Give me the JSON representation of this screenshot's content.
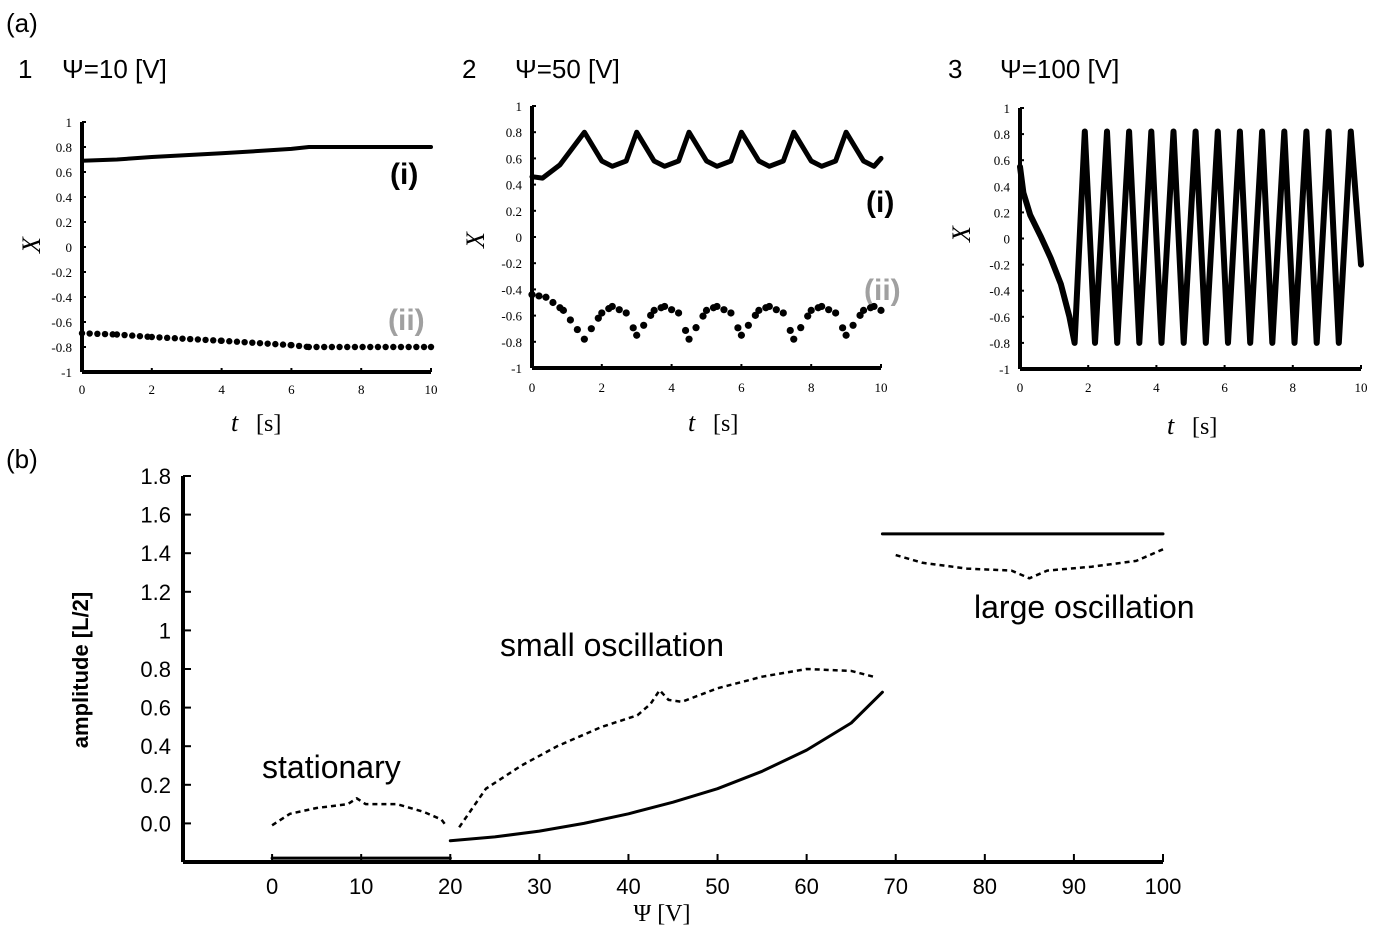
{
  "panels": {
    "a": "(a)",
    "b": "(b)"
  },
  "colors": {
    "series_i": "#000000",
    "series_ii": "#000000",
    "label_ii": "#a0a0a0",
    "axis": "#000000"
  },
  "chart_data": [
    {
      "type": "line",
      "subplot_number": "1",
      "title": "Ψ=10 [V]",
      "xlabel": "t",
      "xunit": "[s]",
      "ylabel": "X",
      "xlim": [
        0,
        10
      ],
      "ylim": [
        -1,
        1
      ],
      "xticks": [
        0,
        2,
        4,
        6,
        8,
        10
      ],
      "yticks": [
        1,
        0.8,
        0.6,
        0.4,
        0.2,
        0,
        -0.2,
        -0.4,
        -0.6,
        -0.8,
        -1
      ],
      "ytick_labels": [
        "1",
        "0.8",
        "0.6",
        "0.4",
        "0.2",
        "0",
        "-0.2",
        "-0.4",
        "-0.6",
        "-0.8",
        "-1"
      ],
      "series": [
        {
          "name": "(i)",
          "style": "solid",
          "points": [
            [
              0,
              0.69
            ],
            [
              1,
              0.7
            ],
            [
              2,
              0.72
            ],
            [
              4,
              0.75
            ],
            [
              6,
              0.785
            ],
            [
              6.5,
              0.8
            ],
            [
              10,
              0.8
            ]
          ]
        },
        {
          "name": "(ii)",
          "style": "dotted",
          "points": [
            [
              0,
              -0.69
            ],
            [
              1,
              -0.7
            ],
            [
              2,
              -0.72
            ],
            [
              4,
              -0.75
            ],
            [
              6,
              -0.785
            ],
            [
              6.5,
              -0.8
            ],
            [
              10,
              -0.8
            ]
          ]
        }
      ]
    },
    {
      "type": "line",
      "subplot_number": "2",
      "title": "Ψ=50 [V]",
      "xlabel": "t",
      "xunit": "[s]",
      "ylabel": "X",
      "xlim": [
        0,
        10
      ],
      "ylim": [
        -1,
        1
      ],
      "xticks": [
        0,
        2,
        4,
        6,
        8,
        10
      ],
      "yticks": [
        1,
        0.8,
        0.6,
        0.4,
        0.2,
        0,
        -0.2,
        -0.4,
        -0.6,
        -0.8,
        -1
      ],
      "ytick_labels": [
        "1",
        "0.8",
        "0.6",
        "0.4",
        "0.2",
        "0",
        "-0.2",
        "-0.4",
        "-0.6",
        "-0.8",
        "-1"
      ],
      "series": [
        {
          "name": "(i)",
          "style": "solid",
          "points": [
            [
              0,
              0.46
            ],
            [
              0.3,
              0.45
            ],
            [
              0.8,
              0.55
            ],
            [
              1.5,
              0.8
            ],
            [
              2.0,
              0.58
            ],
            [
              2.3,
              0.54
            ],
            [
              2.7,
              0.58
            ],
            [
              3.0,
              0.8
            ],
            [
              3.5,
              0.58
            ],
            [
              3.8,
              0.54
            ],
            [
              4.2,
              0.58
            ],
            [
              4.5,
              0.8
            ],
            [
              5.0,
              0.58
            ],
            [
              5.3,
              0.54
            ],
            [
              5.7,
              0.58
            ],
            [
              6.0,
              0.8
            ],
            [
              6.5,
              0.58
            ],
            [
              6.8,
              0.54
            ],
            [
              7.2,
              0.58
            ],
            [
              7.5,
              0.8
            ],
            [
              8.0,
              0.58
            ],
            [
              8.3,
              0.54
            ],
            [
              8.7,
              0.58
            ],
            [
              9.0,
              0.8
            ],
            [
              9.5,
              0.58
            ],
            [
              9.8,
              0.54
            ],
            [
              10,
              0.6
            ]
          ]
        },
        {
          "name": "(ii)",
          "style": "dotted",
          "points": [
            [
              0,
              -0.44
            ],
            [
              0.4,
              -0.46
            ],
            [
              0.9,
              -0.56
            ],
            [
              1.5,
              -0.78
            ],
            [
              2.0,
              -0.58
            ],
            [
              2.3,
              -0.53
            ],
            [
              2.7,
              -0.58
            ],
            [
              3.0,
              -0.75
            ],
            [
              3.5,
              -0.56
            ],
            [
              3.8,
              -0.53
            ],
            [
              4.2,
              -0.58
            ],
            [
              4.5,
              -0.78
            ],
            [
              5.0,
              -0.56
            ],
            [
              5.3,
              -0.53
            ],
            [
              5.7,
              -0.58
            ],
            [
              6.0,
              -0.75
            ],
            [
              6.5,
              -0.56
            ],
            [
              6.8,
              -0.53
            ],
            [
              7.2,
              -0.58
            ],
            [
              7.5,
              -0.78
            ],
            [
              8.0,
              -0.56
            ],
            [
              8.3,
              -0.53
            ],
            [
              8.7,
              -0.58
            ],
            [
              9.0,
              -0.75
            ],
            [
              9.5,
              -0.56
            ],
            [
              9.8,
              -0.53
            ],
            [
              10,
              -0.56
            ]
          ]
        }
      ]
    },
    {
      "type": "line",
      "subplot_number": "3",
      "title": "Ψ=100 [V]",
      "xlabel": "t",
      "xunit": "[s]",
      "ylabel": "X",
      "xlim": [
        0,
        10
      ],
      "ylim": [
        -1,
        1
      ],
      "xticks": [
        0,
        2,
        4,
        6,
        8,
        10
      ],
      "yticks": [
        1,
        0.8,
        0.6,
        0.4,
        0.2,
        0,
        -0.2,
        -0.4,
        -0.6,
        -0.8,
        -1
      ],
      "ytick_labels": [
        "1",
        "0.8",
        "0.6",
        "0.4",
        "0.2",
        "0",
        "-0.2",
        "-0.4",
        "-0.6",
        "-0.8",
        "-1"
      ],
      "series": [
        {
          "name": "",
          "style": "solid",
          "points": [
            [
              0,
              0.55
            ],
            [
              0.1,
              0.35
            ],
            [
              0.3,
              0.18
            ],
            [
              0.6,
              0.02
            ],
            [
              0.9,
              -0.15
            ],
            [
              1.2,
              -0.35
            ],
            [
              1.45,
              -0.6
            ],
            [
              1.6,
              -0.8
            ],
            [
              1.9,
              0.82
            ],
            [
              2.2,
              -0.8
            ],
            [
              2.55,
              0.82
            ],
            [
              2.85,
              -0.8
            ],
            [
              3.2,
              0.82
            ],
            [
              3.5,
              -0.8
            ],
            [
              3.85,
              0.82
            ],
            [
              4.15,
              -0.8
            ],
            [
              4.5,
              0.82
            ],
            [
              4.8,
              -0.8
            ],
            [
              5.15,
              0.82
            ],
            [
              5.45,
              -0.8
            ],
            [
              5.8,
              0.82
            ],
            [
              6.1,
              -0.8
            ],
            [
              6.45,
              0.82
            ],
            [
              6.75,
              -0.8
            ],
            [
              7.1,
              0.82
            ],
            [
              7.4,
              -0.8
            ],
            [
              7.75,
              0.82
            ],
            [
              8.05,
              -0.8
            ],
            [
              8.4,
              0.82
            ],
            [
              8.7,
              -0.8
            ],
            [
              9.05,
              0.82
            ],
            [
              9.35,
              -0.8
            ],
            [
              9.7,
              0.82
            ],
            [
              10,
              -0.2
            ]
          ]
        }
      ]
    },
    {
      "type": "line",
      "subplot_number": "",
      "title": "",
      "xlabel": "Ψ [V]",
      "ylabel": "amplitude  [L/2]",
      "xlim": [
        -10,
        100
      ],
      "ylim": [
        -0.2,
        1.8
      ],
      "xticks": [
        0,
        10,
        20,
        30,
        40,
        50,
        60,
        70,
        80,
        90,
        100
      ],
      "yticks": [
        1.8,
        1.6,
        1.4,
        1.2,
        1,
        0.8,
        0.6,
        0.4,
        0.2,
        0
      ],
      "ytick_labels": [
        "1.8",
        "1.6",
        "1.4",
        "1.2",
        "1",
        "0.8",
        "0.6",
        "0.4",
        "0.2",
        "0.0"
      ],
      "annotations": [
        "stationary",
        "small oscillation",
        "large oscillation"
      ],
      "series": [
        {
          "name": "",
          "style": "solid",
          "points": [
            [
              0,
              -0.18
            ],
            [
              20,
              -0.18
            ]
          ]
        },
        {
          "name": "",
          "style": "solid",
          "points": [
            [
              20,
              -0.09
            ],
            [
              25,
              -0.07
            ],
            [
              30,
              -0.04
            ],
            [
              35,
              0
            ],
            [
              40,
              0.05
            ],
            [
              45,
              0.11
            ],
            [
              50,
              0.18
            ],
            [
              55,
              0.27
            ],
            [
              60,
              0.38
            ],
            [
              65,
              0.52
            ],
            [
              68.5,
              0.68
            ]
          ]
        },
        {
          "name": "",
          "style": "solid",
          "points": [
            [
              68.5,
              1.5
            ],
            [
              100,
              1.5
            ]
          ]
        },
        {
          "name": "",
          "style": "dashed",
          "points": [
            [
              0,
              -0.01
            ],
            [
              2,
              0.05
            ],
            [
              5,
              0.08
            ],
            [
              8.5,
              0.1
            ],
            [
              9.5,
              0.13
            ],
            [
              10.5,
              0.1
            ],
            [
              14,
              0.1
            ],
            [
              17,
              0.06
            ],
            [
              19,
              0.02
            ],
            [
              19.5,
              -0.01
            ]
          ]
        },
        {
          "name": "",
          "style": "dashed",
          "points": [
            [
              21,
              -0.02
            ],
            [
              24,
              0.18
            ],
            [
              28,
              0.3
            ],
            [
              32,
              0.4
            ],
            [
              37,
              0.5
            ],
            [
              41,
              0.56
            ],
            [
              42.5,
              0.62
            ],
            [
              43.5,
              0.69
            ],
            [
              44.5,
              0.64
            ],
            [
              46,
              0.63
            ],
            [
              50,
              0.7
            ],
            [
              55,
              0.76
            ],
            [
              60,
              0.8
            ],
            [
              65,
              0.79
            ],
            [
              67.5,
              0.76
            ]
          ]
        },
        {
          "name": "",
          "style": "dashed",
          "points": [
            [
              70,
              1.39
            ],
            [
              73,
              1.35
            ],
            [
              78,
              1.32
            ],
            [
              83,
              1.31
            ],
            [
              85,
              1.27
            ],
            [
              87,
              1.31
            ],
            [
              92,
              1.33
            ],
            [
              97,
              1.36
            ],
            [
              100,
              1.42
            ]
          ]
        }
      ]
    }
  ]
}
